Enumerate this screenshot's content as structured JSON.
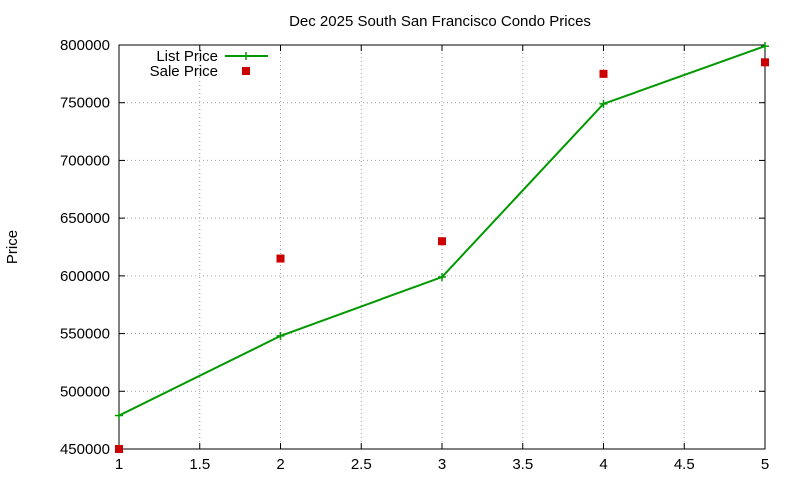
{
  "chart_data": {
    "type": "line",
    "title": "Dec 2025 South San Francisco Condo Prices",
    "xlabel": "",
    "ylabel": "Price",
    "xlim": [
      1,
      5
    ],
    "ylim": [
      450000,
      800000
    ],
    "x_ticks": [
      1,
      1.5,
      2,
      2.5,
      3,
      3.5,
      4,
      4.5,
      5
    ],
    "y_ticks": [
      450000,
      500000,
      550000,
      600000,
      650000,
      700000,
      750000,
      800000
    ],
    "grid": true,
    "legend_position": "top-left",
    "series": [
      {
        "name": "List Price",
        "style": "line-with-plus-markers",
        "color": "#009900",
        "x": [
          1,
          2,
          3,
          4,
          5
        ],
        "y": [
          479000,
          548000,
          599000,
          749000,
          799000
        ]
      },
      {
        "name": "Sale Price",
        "style": "square-markers",
        "color": "#cc0000",
        "x": [
          1,
          2,
          3,
          4,
          5
        ],
        "y": [
          450000,
          615000,
          630000,
          775000,
          785000
        ]
      }
    ]
  }
}
